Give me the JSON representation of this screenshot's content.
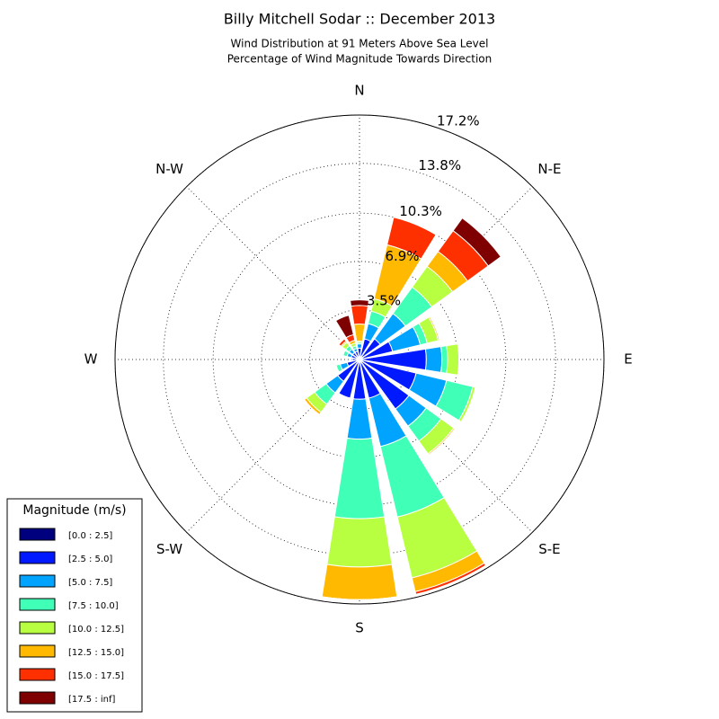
{
  "chart_data": {
    "type": "windrose",
    "title": "Billy Mitchell Sodar :: December 2013",
    "subtitle": [
      "Wind Distribution at 91 Meters Above Sea Level",
      "Percentage of Wind Magnitude Towards Direction"
    ],
    "categories": [
      "N",
      null,
      "N-E",
      null,
      "E",
      null,
      "S-E",
      null,
      "S",
      null,
      "S-W",
      null,
      "W",
      null,
      "N-W",
      null
    ],
    "rlim": [
      0,
      17.2
    ],
    "rticks": [
      {
        "value": 3.5,
        "label": "3.5%"
      },
      {
        "value": 6.9,
        "label": "6.9%"
      },
      {
        "value": 10.3,
        "label": "10.3%"
      },
      {
        "value": 13.8,
        "label": "13.8%"
      },
      {
        "value": 17.2,
        "label": "17.2%"
      }
    ],
    "grid": true,
    "legend_title": "Magnitude (m/s)",
    "legend": "lower left",
    "series": [
      {
        "name": "[0.0 : 2.5]",
        "color": "#00007f",
        "values": [
          0.2,
          0.2,
          0.2,
          0.2,
          0.2,
          0.2,
          0.2,
          0.2,
          0.2,
          0.2,
          0.2,
          0.2,
          0.2,
          0.2,
          0.2,
          0.2
        ]
      },
      {
        "name": "[2.5 : 5.0]",
        "color": "#0019ff",
        "values": [
          0.6,
          1.3,
          1.6,
          2.2,
          4.5,
          3.9,
          4.1,
          2.6,
          2.6,
          2.6,
          1.7,
          0.7,
          0.3,
          0.4,
          0.4,
          0.4
        ]
      },
      {
        "name": "[5.0 : 7.5]",
        "color": "#00a4ff",
        "values": [
          0.3,
          1.1,
          2.2,
          2.0,
          1.1,
          2.2,
          1.5,
          3.5,
          2.8,
          0,
          1.0,
          0.5,
          0.1,
          0.3,
          0.3,
          0.2
        ]
      },
      {
        "name": "[7.5 : 10.0]",
        "color": "#40ffb7",
        "values": [
          0.1,
          0.9,
          2.3,
          0.5,
          0.4,
          1.9,
          1.3,
          5.1,
          5.6,
          0,
          1.0,
          0.3,
          0,
          0.3,
          0.3,
          0.2
        ]
      },
      {
        "name": "[10.0 : 12.5]",
        "color": "#b7ff40",
        "values": [
          0.1,
          0.9,
          1.8,
          0.8,
          0.8,
          0.2,
          1.1,
          4.4,
          3.4,
          0,
          0.7,
          0,
          0,
          0,
          0.3,
          0.2
        ]
      },
      {
        "name": "[12.5 : 15.0]",
        "color": "#ffb900",
        "values": [
          1.2,
          3.9,
          1.3,
          0.1,
          0,
          0,
          0.1,
          1.0,
          2.3,
          0,
          0.2,
          0,
          0,
          0,
          0.1,
          0.2
        ]
      },
      {
        "name": "[15.0 : 17.5]",
        "color": "#ff3000",
        "values": [
          1.3,
          2.0,
          1.8,
          0,
          0,
          0,
          0,
          0.2,
          0,
          0,
          0,
          0,
          0,
          0,
          0.2,
          0.4
        ]
      },
      {
        "name": "[17.5 : inf]",
        "color": "#7f0000",
        "values": [
          0.4,
          0,
          1.1,
          0,
          0,
          0,
          0,
          0,
          0,
          0,
          0,
          0,
          0,
          0,
          0,
          1.4
        ]
      }
    ]
  }
}
